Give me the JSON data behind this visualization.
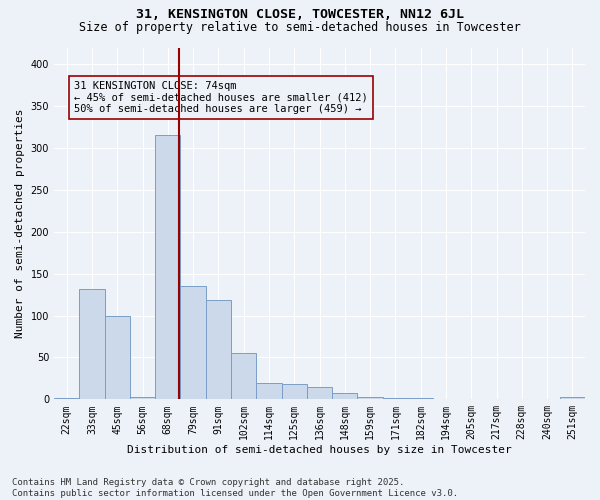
{
  "title_line1": "31, KENSINGTON CLOSE, TOWCESTER, NN12 6JL",
  "title_line2": "Size of property relative to semi-detached houses in Towcester",
  "xlabel": "Distribution of semi-detached houses by size in Towcester",
  "ylabel": "Number of semi-detached properties",
  "footnote": "Contains HM Land Registry data © Crown copyright and database right 2025.\nContains public sector information licensed under the Open Government Licence v3.0.",
  "bar_labels": [
    "22sqm",
    "33sqm",
    "45sqm",
    "56sqm",
    "68sqm",
    "79sqm",
    "91sqm",
    "102sqm",
    "114sqm",
    "125sqm",
    "136sqm",
    "148sqm",
    "159sqm",
    "171sqm",
    "182sqm",
    "194sqm",
    "205sqm",
    "217sqm",
    "228sqm",
    "240sqm",
    "251sqm"
  ],
  "bar_heights": [
    2,
    132,
    100,
    3,
    315,
    135,
    118,
    55,
    20,
    18,
    15,
    8,
    3,
    1,
    1,
    0,
    0,
    0,
    0,
    0,
    3
  ],
  "bar_color": "#ccd9ea",
  "bar_edge_color": "#7a9ec8",
  "vline_x_index": 4.45,
  "vline_color": "#990000",
  "property_label": "31 KENSINGTON CLOSE: 74sqm",
  "pct_smaller": 45,
  "n_smaller": 412,
  "pct_larger": 50,
  "n_larger": 459,
  "annotation_box_color": "#990000",
  "ylim": [
    0,
    420
  ],
  "yticks": [
    0,
    50,
    100,
    150,
    200,
    250,
    300,
    350,
    400
  ],
  "background_color": "#edf2f8",
  "grid_color": "#ffffff",
  "title_fontsize": 9.5,
  "subtitle_fontsize": 8.5,
  "axis_label_fontsize": 8,
  "tick_fontsize": 7,
  "annotation_fontsize": 7.5,
  "footnote_fontsize": 6.5
}
